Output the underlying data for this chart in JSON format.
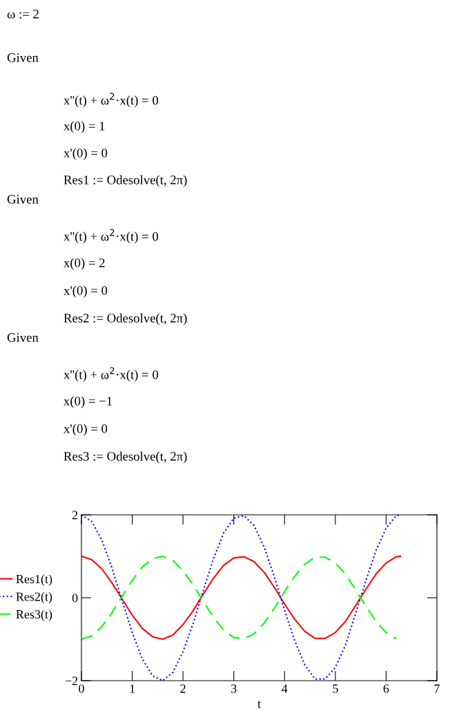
{
  "chart_data": {
    "type": "line",
    "xlabel": "t",
    "annotations": [
      "ω := 2",
      "Given",
      "x''(t) + ω$^{2}$·x(t) = 0",
      "x(0) = 1",
      "x'(0) = 0",
      "Res1 := Odesolve(t, 2π)",
      "Given",
      "x''(t) + ω$^{2}$·x(t) = 0",
      "x(0) = 2",
      "x'(0) = 0",
      "Res2 := Odesolve(t, 2π)",
      "Given",
      "x''(t) + ω$^{2}$·x(t) = 0",
      "x(0) = −1",
      "x'(0) = 0",
      "Res3 := Odesolve(t, 2π)"
    ],
    "x": [
      0,
      0.2,
      0.4,
      0.6,
      0.8,
      1.0,
      1.2,
      1.4,
      1.6,
      1.8,
      2.0,
      2.2,
      2.4,
      2.6,
      2.8,
      3.0,
      3.2,
      3.4,
      3.6,
      3.8,
      4.0,
      4.2,
      4.4,
      4.6,
      4.8,
      5.0,
      5.2,
      5.4,
      5.6,
      5.8,
      6.0,
      6.2,
      6.28
    ],
    "series": [
      {
        "name": "Res1(t)",
        "color": "#ff0000",
        "line_style": "solid",
        "values": [
          1,
          0.92,
          0.7,
          0.36,
          -0.03,
          -0.42,
          -0.74,
          -0.94,
          -1,
          -0.9,
          -0.65,
          -0.31,
          0.09,
          0.47,
          0.78,
          0.96,
          0.99,
          0.87,
          0.61,
          0.25,
          -0.15,
          -0.52,
          -0.81,
          -0.98,
          -0.98,
          -0.84,
          -0.57,
          -0.19,
          0.2,
          0.57,
          0.84,
          0.99,
          1
        ]
      },
      {
        "name": "Res2(t)",
        "color": "#0000ff",
        "line_style": "dotted",
        "values": [
          2,
          1.84,
          1.4,
          0.72,
          -0.06,
          -0.84,
          -1.48,
          -1.88,
          -2,
          -1.8,
          -1.3,
          -0.62,
          0.18,
          0.94,
          1.56,
          1.92,
          1.98,
          1.74,
          1.22,
          0.5,
          -0.3,
          -1.04,
          -1.62,
          -1.96,
          -1.96,
          -1.68,
          -1.14,
          -0.38,
          0.4,
          1.14,
          1.68,
          1.98,
          2
        ]
      },
      {
        "name": "Res3(t)",
        "color": "#00ff00",
        "line_style": "dashed",
        "values": [
          -1,
          -0.92,
          -0.7,
          -0.36,
          0.03,
          0.42,
          0.74,
          0.94,
          1,
          0.9,
          0.65,
          0.31,
          -0.09,
          -0.47,
          -0.78,
          -0.96,
          -0.99,
          -0.87,
          -0.61,
          -0.25,
          0.15,
          0.52,
          0.81,
          0.98,
          0.98,
          0.84,
          0.57,
          0.19,
          -0.2,
          -0.57,
          -0.84,
          -0.99,
          null
        ]
      }
    ],
    "xlim": [
      0,
      7
    ],
    "xticks": [
      0,
      1,
      2,
      3,
      4,
      5,
      6,
      7
    ],
    "ylim": [
      -2,
      2
    ],
    "yticks": [
      {
        "value": -2,
        "label": "−2"
      },
      0,
      2
    ],
    "grid": false,
    "legend": "left",
    "marker": "none"
  }
}
